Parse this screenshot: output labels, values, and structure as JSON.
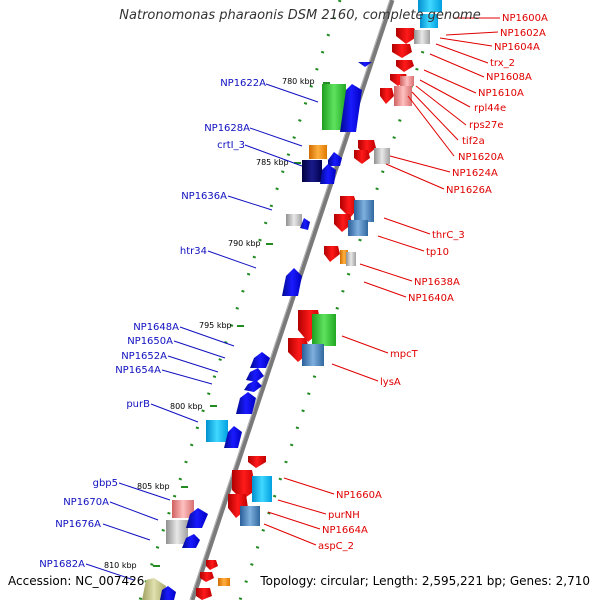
{
  "header": {
    "title": "Natronomonas pharaonis DSM 2160, complete genome"
  },
  "footer": {
    "accession": "Accession: NC_007426",
    "summary": "Topology: circular; Length: 2,595,221 bp; Genes: 2,710"
  },
  "colors": {
    "forward_label": "#1010c0",
    "reverse_label": "#e00000",
    "backbone": "#808080",
    "tick": "#228b22"
  },
  "scale_ticks": [
    "780 kbp",
    "785 kbp",
    "790 kbp",
    "795 kbp",
    "800 kbp",
    "805 kbp",
    "810 kbp"
  ],
  "forward_genes": [
    "NP1622A",
    "NP1628A",
    "crtI_3",
    "NP1636A",
    "htr34",
    "NP1648A",
    "NP1650A",
    "NP1652A",
    "NP1654A",
    "purB",
    "gbp5",
    "NP1670A",
    "NP1676A",
    "NP1682A"
  ],
  "reverse_genes": [
    "NP1600A",
    "NP1602A",
    "NP1604A",
    "trx_2",
    "NP1608A",
    "NP1610A",
    "rpl44e",
    "rps27e",
    "tif2a",
    "NP1620A",
    "NP1624A",
    "NP1626A",
    "thrC_3",
    "tp10",
    "NP1638A",
    "NP1640A",
    "mpcT",
    "lysA",
    "NP1660A",
    "purNH",
    "NP1664A",
    "aspC_2"
  ]
}
